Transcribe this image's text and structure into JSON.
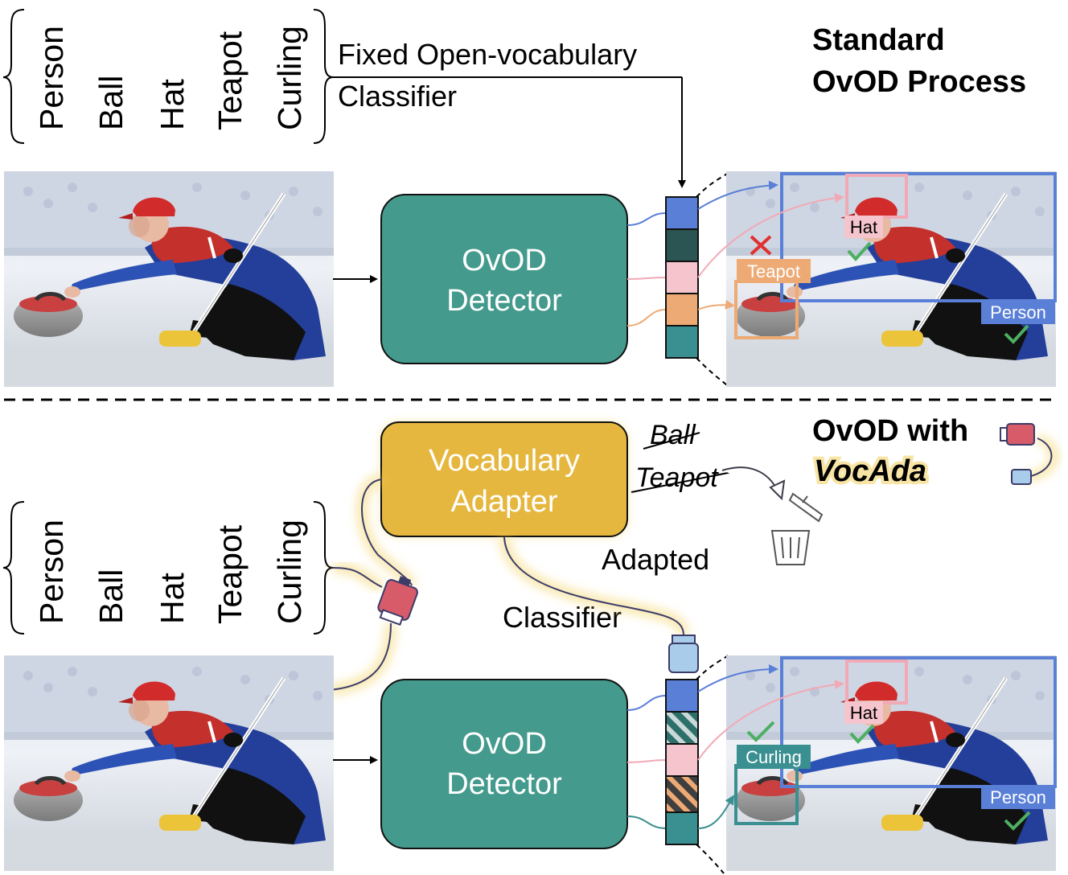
{
  "vocabulary": [
    "Person",
    "Ball",
    "Hat",
    "Teapot",
    "Curling"
  ],
  "top": {
    "title_line1": "Standard",
    "title_line2": "OvOD Process",
    "classifier_line1": "Fixed Open-vocabulary",
    "classifier_line2": "Classifier",
    "detector_line1": "OvOD",
    "detector_line2": "Detector",
    "tags": {
      "hat": "Hat",
      "teapot": "Teapot",
      "person": "Person"
    }
  },
  "bottom": {
    "title_line1": "OvOD with",
    "title_line2": "VocAda",
    "adapter_line1": "Vocabulary",
    "adapter_line2": "Adapter",
    "removed": [
      "Ball",
      "Teapot"
    ],
    "classifier_line1": "Adapted",
    "classifier_line2": "Classifier",
    "detector_line1": "OvOD",
    "detector_line2": "Detector",
    "tags": {
      "hat": "Hat",
      "curling": "Curling",
      "person": "Person"
    }
  },
  "colors": {
    "detector": "#449a8c",
    "adapter": "#e6b73f",
    "blue": "#5a7fd6",
    "dark_teal": "#2b5552",
    "pink": "#f5c4cc",
    "orange": "#eeaa74",
    "teal": "#3a8f90",
    "check": "#4caf62",
    "cross": "#e03030"
  }
}
